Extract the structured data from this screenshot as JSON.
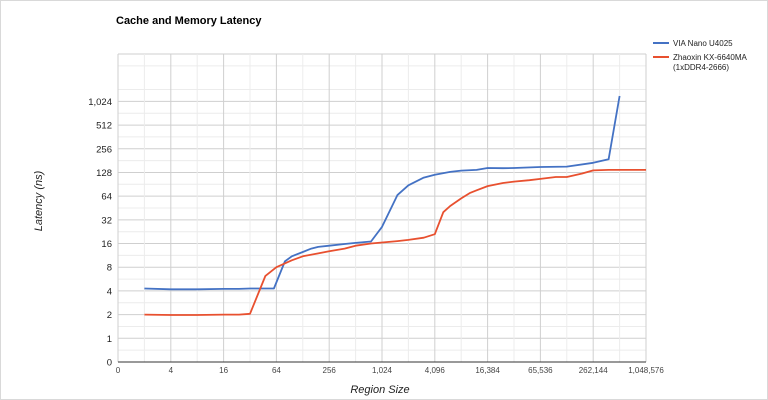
{
  "chart_data": {
    "type": "line",
    "title": "Cache and Memory Latency",
    "xlabel": "Region Size",
    "ylabel": "Latency (ns)",
    "x_scale": "log2",
    "y_scale": "log2",
    "x_ticks": [
      {
        "value": 1,
        "label": "0"
      },
      {
        "value": 4,
        "label": "4"
      },
      {
        "value": 16,
        "label": "16"
      },
      {
        "value": 64,
        "label": "64"
      },
      {
        "value": 256,
        "label": "256"
      },
      {
        "value": 1024,
        "label": "1,024"
      },
      {
        "value": 4096,
        "label": "4,096"
      },
      {
        "value": 16384,
        "label": "16,384"
      },
      {
        "value": 65536,
        "label": "65,536"
      },
      {
        "value": 262144,
        "label": "262,144"
      },
      {
        "value": 1048576,
        "label": "1,048,576"
      }
    ],
    "y_ticks": [
      {
        "value": 0.5,
        "label": "0"
      },
      {
        "value": 1,
        "label": "1"
      },
      {
        "value": 2,
        "label": "2"
      },
      {
        "value": 4,
        "label": "4"
      },
      {
        "value": 8,
        "label": "8"
      },
      {
        "value": 16,
        "label": "16"
      },
      {
        "value": 32,
        "label": "32"
      },
      {
        "value": 64,
        "label": "64"
      },
      {
        "value": 128,
        "label": "128"
      },
      {
        "value": 256,
        "label": "256"
      },
      {
        "value": 512,
        "label": "512"
      },
      {
        "value": 1024,
        "label": "1,024"
      }
    ],
    "xlim": [
      1,
      1048576
    ],
    "ylim": [
      0.5,
      4096
    ],
    "grid": true,
    "legend_position": "right",
    "series": [
      {
        "name": "VIA Nano U4025",
        "color": "#4472c4",
        "points": [
          [
            2,
            4.3
          ],
          [
            4,
            4.2
          ],
          [
            8,
            4.2
          ],
          [
            16,
            4.25
          ],
          [
            24,
            4.25
          ],
          [
            32,
            4.3
          ],
          [
            48,
            4.3
          ],
          [
            60,
            4.3
          ],
          [
            80,
            9.5
          ],
          [
            96,
            11
          ],
          [
            128,
            12.5
          ],
          [
            160,
            13.8
          ],
          [
            192,
            14.5
          ],
          [
            256,
            15
          ],
          [
            384,
            15.8
          ],
          [
            512,
            16.3
          ],
          [
            768,
            17
          ],
          [
            1024,
            26
          ],
          [
            1536,
            66
          ],
          [
            2048,
            88
          ],
          [
            3072,
            110
          ],
          [
            4096,
            120
          ],
          [
            6144,
            130
          ],
          [
            8192,
            135
          ],
          [
            12288,
            138
          ],
          [
            16384,
            146
          ],
          [
            24576,
            145
          ],
          [
            32768,
            146
          ],
          [
            65536,
            150
          ],
          [
            131072,
            152
          ],
          [
            262144,
            170
          ],
          [
            393216,
            188
          ],
          [
            524288,
            1200
          ]
        ]
      },
      {
        "name": "Zhaoxin KX-6640MA (1xDDR4-2666)",
        "color": "#e8502f",
        "points": [
          [
            2,
            2.0
          ],
          [
            4,
            1.98
          ],
          [
            8,
            1.98
          ],
          [
            16,
            2.0
          ],
          [
            24,
            2.0
          ],
          [
            32,
            2.05
          ],
          [
            48,
            6.2
          ],
          [
            64,
            8
          ],
          [
            96,
            9.8
          ],
          [
            128,
            11
          ],
          [
            192,
            12
          ],
          [
            256,
            12.8
          ],
          [
            384,
            13.8
          ],
          [
            512,
            15
          ],
          [
            768,
            16
          ],
          [
            1024,
            16.5
          ],
          [
            1536,
            17.2
          ],
          [
            2048,
            17.8
          ],
          [
            3072,
            19
          ],
          [
            4096,
            21
          ],
          [
            5120,
            40
          ],
          [
            6144,
            48
          ],
          [
            8192,
            60
          ],
          [
            10240,
            70
          ],
          [
            12288,
            76
          ],
          [
            16384,
            86
          ],
          [
            24576,
            94
          ],
          [
            32768,
            98
          ],
          [
            49152,
            102
          ],
          [
            65536,
            106
          ],
          [
            98304,
            112
          ],
          [
            131072,
            112
          ],
          [
            196608,
            124
          ],
          [
            262144,
            136
          ],
          [
            393216,
            138
          ],
          [
            524288,
            138
          ],
          [
            1048576,
            138
          ]
        ]
      }
    ]
  }
}
